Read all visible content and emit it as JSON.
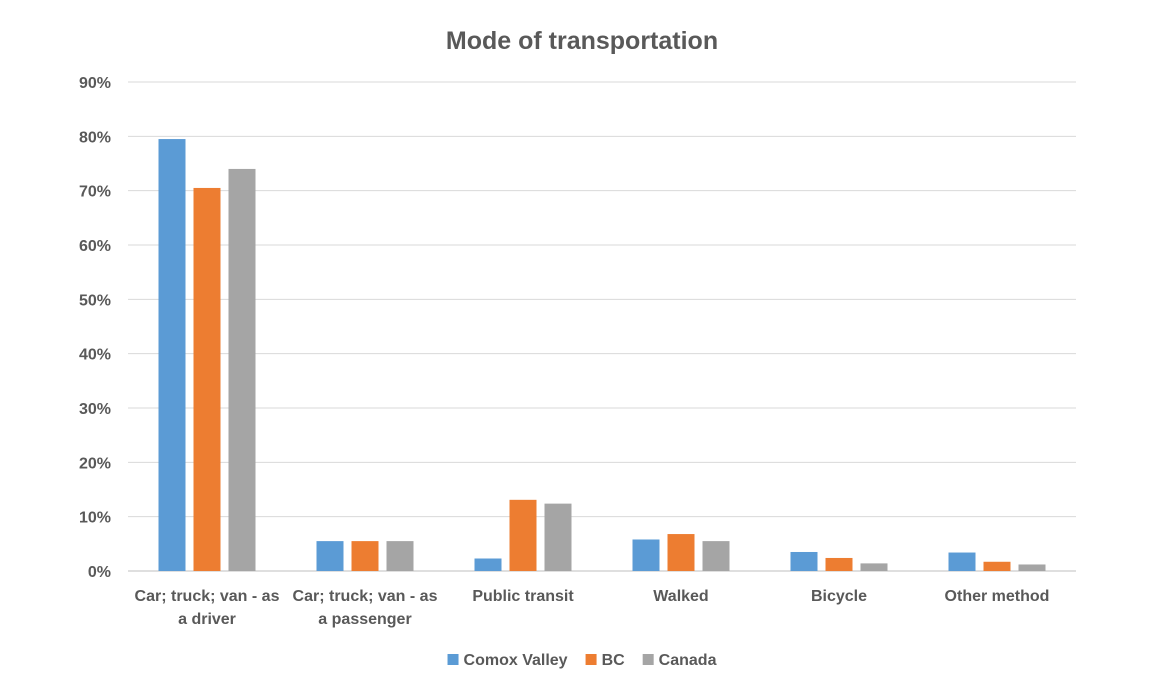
{
  "chart_data": {
    "type": "bar",
    "title": "Mode of transportation",
    "categories": [
      [
        "Car; truck; van - as",
        "a driver"
      ],
      [
        "Car; truck; van - as",
        "a passenger"
      ],
      [
        "Public transit"
      ],
      [
        "Walked"
      ],
      [
        "Bicycle"
      ],
      [
        "Other method"
      ]
    ],
    "series": [
      {
        "name": "Comox Valley",
        "color": "#5B9BD5",
        "values": [
          79.5,
          5.5,
          2.3,
          5.8,
          3.5,
          3.4
        ]
      },
      {
        "name": "BC",
        "color": "#ED7D31",
        "values": [
          70.5,
          5.5,
          13.1,
          6.8,
          2.4,
          1.7
        ]
      },
      {
        "name": "Canada",
        "color": "#A5A5A5",
        "values": [
          74.0,
          5.5,
          12.4,
          5.5,
          1.4,
          1.2
        ]
      }
    ],
    "yticks": [
      "0%",
      "10%",
      "20%",
      "30%",
      "40%",
      "50%",
      "60%",
      "70%",
      "80%",
      "90%"
    ],
    "ylim": [
      0,
      90
    ],
    "grid": true,
    "legend": "bottom"
  }
}
